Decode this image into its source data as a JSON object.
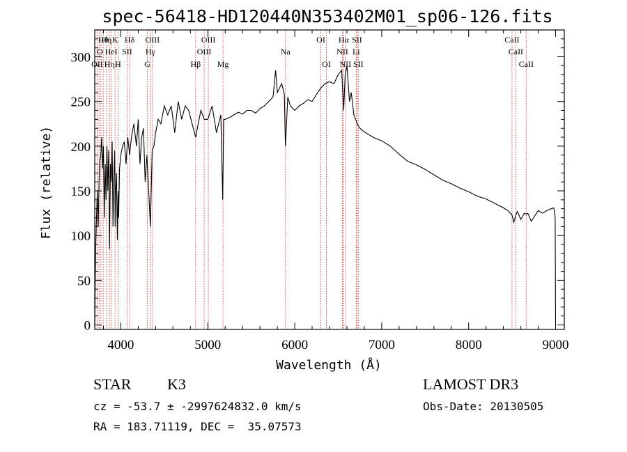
{
  "info": {
    "object_type": "STAR",
    "subclass": "K3",
    "survey": "LAMOST DR3",
    "cz": "cz = -53.7 ± -2997624832.0 km/s",
    "obs_date": "Obs-Date: 20130505",
    "radec": "RA = 183.71119, DEC =  35.07573"
  },
  "chart_data": {
    "type": "line",
    "title": "spec-56418-HD120440N353402M01_sp06-126.fits",
    "xlabel": "Wavelength (Å)",
    "ylabel": "Flux (relative)",
    "xlim": [
      3700,
      9100
    ],
    "ylim": [
      -5,
      330
    ],
    "xticks": [
      4000,
      5000,
      6000,
      7000,
      8000,
      9000
    ],
    "yticks": [
      0,
      50,
      100,
      150,
      200,
      250,
      300
    ],
    "series": [
      {
        "name": "flux",
        "x": [
          3700,
          3710,
          3720,
          3730,
          3740,
          3750,
          3760,
          3770,
          3780,
          3790,
          3800,
          3810,
          3820,
          3830,
          3840,
          3850,
          3860,
          3870,
          3880,
          3890,
          3900,
          3910,
          3920,
          3930,
          3935,
          3940,
          3950,
          3960,
          3968,
          3975,
          3985,
          4000,
          4020,
          4040,
          4060,
          4080,
          4101,
          4110,
          4130,
          4150,
          4180,
          4200,
          4220,
          4240,
          4260,
          4280,
          4300,
          4320,
          4340,
          4360,
          4380,
          4400,
          4430,
          4460,
          4500,
          4540,
          4580,
          4620,
          4660,
          4700,
          4740,
          4780,
          4820,
          4861,
          4880,
          4920,
          4960,
          5000,
          5050,
          5100,
          5150,
          5172,
          5183,
          5200,
          5250,
          5300,
          5350,
          5400,
          5450,
          5500,
          5550,
          5600,
          5650,
          5700,
          5750,
          5780,
          5800,
          5850,
          5880,
          5893,
          5920,
          5950,
          6000,
          6050,
          6100,
          6150,
          6200,
          6250,
          6300,
          6350,
          6400,
          6450,
          6500,
          6540,
          6563,
          6580,
          6600,
          6630,
          6650,
          6680,
          6700,
          6720,
          6750,
          6800,
          6850,
          6900,
          6950,
          7000,
          7100,
          7200,
          7300,
          7400,
          7500,
          7600,
          7700,
          7800,
          7900,
          8000,
          8100,
          8200,
          8300,
          8400,
          8450,
          8498,
          8520,
          8542,
          8560,
          8600,
          8640,
          8662,
          8680,
          8720,
          8760,
          8800,
          8850,
          8900,
          8950,
          8980,
          8995,
          9000
        ],
        "values": [
          0,
          80,
          120,
          150,
          110,
          160,
          185,
          190,
          210,
          175,
          200,
          120,
          180,
          140,
          200,
          150,
          195,
          85,
          180,
          160,
          205,
          110,
          165,
          195,
          110,
          150,
          170,
          95,
          150,
          120,
          175,
          190,
          200,
          205,
          180,
          210,
          190,
          200,
          215,
          225,
          200,
          230,
          180,
          210,
          220,
          160,
          190,
          150,
          110,
          195,
          200,
          215,
          230,
          225,
          245,
          235,
          245,
          215,
          250,
          230,
          245,
          240,
          225,
          210,
          220,
          240,
          230,
          230,
          245,
          215,
          235,
          140,
          230,
          230,
          232,
          235,
          238,
          236,
          240,
          240,
          237,
          242,
          245,
          250,
          255,
          285,
          260,
          270,
          258,
          200,
          255,
          245,
          240,
          245,
          248,
          252,
          250,
          258,
          265,
          270,
          272,
          270,
          280,
          285,
          240,
          280,
          290,
          250,
          260,
          235,
          230,
          225,
          220,
          216,
          213,
          210,
          208,
          206,
          200,
          191,
          183,
          179,
          174,
          168,
          162,
          158,
          153,
          149,
          144,
          141,
          136,
          131,
          128,
          123,
          115,
          123,
          127,
          118,
          125,
          124,
          125,
          116,
          122,
          128,
          125,
          128,
          130,
          131,
          120,
          0
        ]
      }
    ],
    "line_labels": [
      {
        "wavelength": 3727,
        "row": 3,
        "text": "OII"
      },
      {
        "wavelength": 3760,
        "row": 2,
        "text": "O"
      },
      {
        "wavelength": 3797,
        "row": 1,
        "text": "Hθ"
      },
      {
        "wavelength": 3835,
        "row": 1,
        "text": "Hη"
      },
      {
        "wavelength": 3869,
        "row": 3,
        "text": "Hη"
      },
      {
        "wavelength": 3889,
        "row": 2,
        "text": "HeI"
      },
      {
        "wavelength": 3934,
        "row": 1,
        "text": "K"
      },
      {
        "wavelength": 3968,
        "row": 3,
        "text": "H"
      },
      {
        "wavelength": 4072,
        "row": 2,
        "text": "SII"
      },
      {
        "wavelength": 4101,
        "row": 1,
        "text": "Hδ"
      },
      {
        "wavelength": 4304,
        "row": 3,
        "text": "G"
      },
      {
        "wavelength": 4340,
        "row": 2,
        "text": "Hγ"
      },
      {
        "wavelength": 4363,
        "row": 1,
        "text": "OIII"
      },
      {
        "wavelength": 4861,
        "row": 3,
        "text": "Hβ"
      },
      {
        "wavelength": 4959,
        "row": 2,
        "text": "OIII"
      },
      {
        "wavelength": 5007,
        "row": 1,
        "text": "OIII"
      },
      {
        "wavelength": 5175,
        "row": 3,
        "text": "Mg"
      },
      {
        "wavelength": 5893,
        "row": 2,
        "text": "Na"
      },
      {
        "wavelength": 6300,
        "row": 1,
        "text": "OI"
      },
      {
        "wavelength": 6364,
        "row": 3,
        "text": "OI"
      },
      {
        "wavelength": 6548,
        "row": 2,
        "text": "NII"
      },
      {
        "wavelength": 6563,
        "row": 1,
        "text": "Hα"
      },
      {
        "wavelength": 6583,
        "row": 3,
        "text": "NII"
      },
      {
        "wavelength": 6707,
        "row": 2,
        "text": "Li"
      },
      {
        "wavelength": 6716,
        "row": 1,
        "text": "SII"
      },
      {
        "wavelength": 6731,
        "row": 3,
        "text": "SII"
      },
      {
        "wavelength": 8498,
        "row": 1,
        "text": "CaII"
      },
      {
        "wavelength": 8542,
        "row": 2,
        "text": "CaII"
      },
      {
        "wavelength": 8662,
        "row": 3,
        "text": "CaII"
      }
    ],
    "marker_lines": [
      3727,
      3750,
      3771,
      3798,
      3835,
      3869,
      3889,
      3934,
      3968,
      4072,
      4101,
      4304,
      4340,
      4363,
      4861,
      4959,
      5007,
      5175,
      5893,
      6300,
      6364,
      6548,
      6563,
      6583,
      6707,
      6716,
      6731,
      8498,
      8542,
      8662
    ]
  }
}
